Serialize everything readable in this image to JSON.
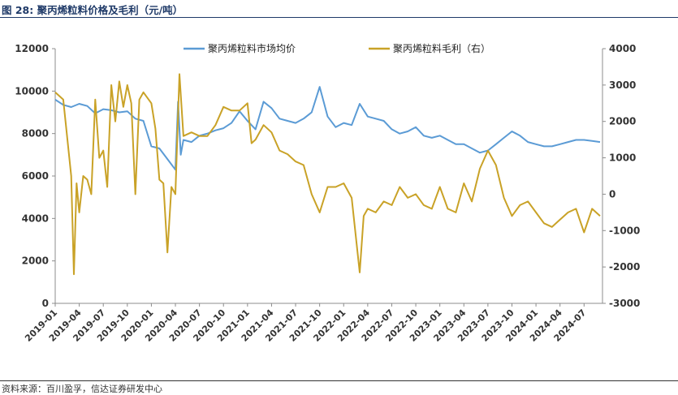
{
  "title": "图 28:  聚丙烯粒料价格及毛利（元/吨）",
  "source": "资料来源：百川盈孚，信达证券研发中心",
  "colors": {
    "price": "#5b9bd5",
    "margin": "#c9a227",
    "title": "#1f3a68"
  },
  "chart_data": {
    "type": "line",
    "legend_position": "top",
    "grid": false,
    "x_tick_labels": [
      "2019-01",
      "2019-04",
      "2019-07",
      "2019-10",
      "2020-01",
      "2020-04",
      "2020-07",
      "2020-10",
      "2021-01",
      "2021-04",
      "2021-07",
      "2021-10",
      "2022-01",
      "2022-04",
      "2022-07",
      "2022-10",
      "2023-01",
      "2023-04",
      "2023-07",
      "2023-10",
      "2024-01",
      "2024-04",
      "2024-07"
    ],
    "y_left": {
      "ylim": [
        0,
        12000
      ],
      "ticks": [
        0,
        2000,
        4000,
        6000,
        8000,
        10000,
        12000
      ]
    },
    "y_right": {
      "ylim": [
        -3000,
        4000
      ],
      "ticks": [
        -3000,
        -2000,
        -1000,
        0,
        1000,
        2000,
        3000,
        4000
      ]
    },
    "series": [
      {
        "name": "聚丙烯粒料市场均价",
        "axis": "left",
        "points": [
          [
            "2019-01",
            9600
          ],
          [
            "2019-02",
            9350
          ],
          [
            "2019-03",
            9250
          ],
          [
            "2019-04",
            9400
          ],
          [
            "2019-05",
            9300
          ],
          [
            "2019-06",
            8950
          ],
          [
            "2019-07",
            9150
          ],
          [
            "2019-08",
            9100
          ],
          [
            "2019-09",
            9000
          ],
          [
            "2019-10",
            9050
          ],
          [
            "2019-11",
            8700
          ],
          [
            "2019-12",
            8600
          ],
          [
            "2020-01",
            7400
          ],
          [
            "2020-02",
            7300
          ],
          [
            "2020-03",
            6800
          ],
          [
            "2020-04",
            6300
          ],
          [
            "2020-04",
            9500
          ],
          [
            "2020-04",
            7000
          ],
          [
            "2020-05",
            7700
          ],
          [
            "2020-06",
            7600
          ],
          [
            "2020-07",
            7900
          ],
          [
            "2020-08",
            8000
          ],
          [
            "2020-09",
            8150
          ],
          [
            "2020-10",
            8250
          ],
          [
            "2020-11",
            8500
          ],
          [
            "2020-12",
            9050
          ],
          [
            "2021-01",
            8600
          ],
          [
            "2021-02",
            8200
          ],
          [
            "2021-03",
            9500
          ],
          [
            "2021-04",
            9200
          ],
          [
            "2021-05",
            8700
          ],
          [
            "2021-06",
            8600
          ],
          [
            "2021-07",
            8500
          ],
          [
            "2021-08",
            8700
          ],
          [
            "2021-09",
            9000
          ],
          [
            "2021-10",
            10200
          ],
          [
            "2021-11",
            8800
          ],
          [
            "2021-12",
            8300
          ],
          [
            "2022-01",
            8500
          ],
          [
            "2022-02",
            8400
          ],
          [
            "2022-03",
            9400
          ],
          [
            "2022-04",
            8800
          ],
          [
            "2022-05",
            8700
          ],
          [
            "2022-06",
            8600
          ],
          [
            "2022-07",
            8200
          ],
          [
            "2022-08",
            8000
          ],
          [
            "2022-09",
            8100
          ],
          [
            "2022-10",
            8300
          ],
          [
            "2022-11",
            7900
          ],
          [
            "2022-12",
            7800
          ],
          [
            "2023-01",
            7900
          ],
          [
            "2023-02",
            7700
          ],
          [
            "2023-03",
            7500
          ],
          [
            "2023-04",
            7500
          ],
          [
            "2023-05",
            7300
          ],
          [
            "2023-06",
            7100
          ],
          [
            "2023-07",
            7200
          ],
          [
            "2023-08",
            7500
          ],
          [
            "2023-09",
            7800
          ],
          [
            "2023-10",
            8100
          ],
          [
            "2023-11",
            7900
          ],
          [
            "2023-12",
            7600
          ],
          [
            "2024-01",
            7500
          ],
          [
            "2024-02",
            7400
          ],
          [
            "2024-03",
            7400
          ],
          [
            "2024-04",
            7500
          ],
          [
            "2024-05",
            7600
          ],
          [
            "2024-06",
            7700
          ],
          [
            "2024-07",
            7700
          ],
          [
            "2024-08",
            7650
          ],
          [
            "2024-09",
            7600
          ]
        ]
      },
      {
        "name": "聚丙烯粒料毛利（右）",
        "axis": "right",
        "points": [
          [
            "2019-01",
            2800
          ],
          [
            "2019-02",
            2600
          ],
          [
            "2019-03",
            500
          ],
          [
            "2019-03",
            -2200
          ],
          [
            "2019-03",
            300
          ],
          [
            "2019-04",
            -500
          ],
          [
            "2019-04",
            500
          ],
          [
            "2019-05",
            400
          ],
          [
            "2019-05",
            0
          ],
          [
            "2019-06",
            2600
          ],
          [
            "2019-06",
            1000
          ],
          [
            "2019-07",
            1200
          ],
          [
            "2019-07",
            200
          ],
          [
            "2019-08",
            3000
          ],
          [
            "2019-08",
            2000
          ],
          [
            "2019-09",
            3100
          ],
          [
            "2019-09",
            2400
          ],
          [
            "2019-10",
            3000
          ],
          [
            "2019-10",
            2500
          ],
          [
            "2019-11",
            0
          ],
          [
            "2019-11",
            2600
          ],
          [
            "2019-12",
            2800
          ],
          [
            "2020-01",
            2500
          ],
          [
            "2020-01",
            1800
          ],
          [
            "2020-02",
            400
          ],
          [
            "2020-02",
            300
          ],
          [
            "2020-03",
            -1600
          ],
          [
            "2020-03",
            200
          ],
          [
            "2020-04",
            0
          ],
          [
            "2020-04",
            3300
          ],
          [
            "2020-05",
            1600
          ],
          [
            "2020-06",
            1700
          ],
          [
            "2020-07",
            1600
          ],
          [
            "2020-08",
            1600
          ],
          [
            "2020-09",
            1900
          ],
          [
            "2020-10",
            2400
          ],
          [
            "2020-11",
            2300
          ],
          [
            "2020-12",
            2300
          ],
          [
            "2021-01",
            2500
          ],
          [
            "2021-01",
            1400
          ],
          [
            "2021-02",
            1500
          ],
          [
            "2021-03",
            1900
          ],
          [
            "2021-04",
            1700
          ],
          [
            "2021-05",
            1200
          ],
          [
            "2021-06",
            1100
          ],
          [
            "2021-07",
            900
          ],
          [
            "2021-08",
            800
          ],
          [
            "2021-09",
            0
          ],
          [
            "2021-10",
            -500
          ],
          [
            "2021-11",
            200
          ],
          [
            "2021-12",
            200
          ],
          [
            "2022-01",
            300
          ],
          [
            "2022-02",
            -100
          ],
          [
            "2022-03",
            -2150
          ],
          [
            "2022-03",
            -600
          ],
          [
            "2022-04",
            -400
          ],
          [
            "2022-05",
            -500
          ],
          [
            "2022-06",
            -200
          ],
          [
            "2022-07",
            -300
          ],
          [
            "2022-08",
            200
          ],
          [
            "2022-09",
            -100
          ],
          [
            "2022-10",
            0
          ],
          [
            "2022-11",
            -300
          ],
          [
            "2022-12",
            -400
          ],
          [
            "2023-01",
            200
          ],
          [
            "2023-02",
            -400
          ],
          [
            "2023-03",
            -500
          ],
          [
            "2023-04",
            300
          ],
          [
            "2023-05",
            -200
          ],
          [
            "2023-06",
            700
          ],
          [
            "2023-07",
            1200
          ],
          [
            "2023-08",
            800
          ],
          [
            "2023-09",
            -100
          ],
          [
            "2023-10",
            -600
          ],
          [
            "2023-11",
            -300
          ],
          [
            "2023-12",
            -200
          ],
          [
            "2024-01",
            -500
          ],
          [
            "2024-02",
            -800
          ],
          [
            "2024-03",
            -900
          ],
          [
            "2024-04",
            -700
          ],
          [
            "2024-05",
            -500
          ],
          [
            "2024-06",
            -400
          ],
          [
            "2024-07",
            -1050
          ],
          [
            "2024-08",
            -400
          ],
          [
            "2024-09",
            -600
          ]
        ]
      }
    ]
  }
}
